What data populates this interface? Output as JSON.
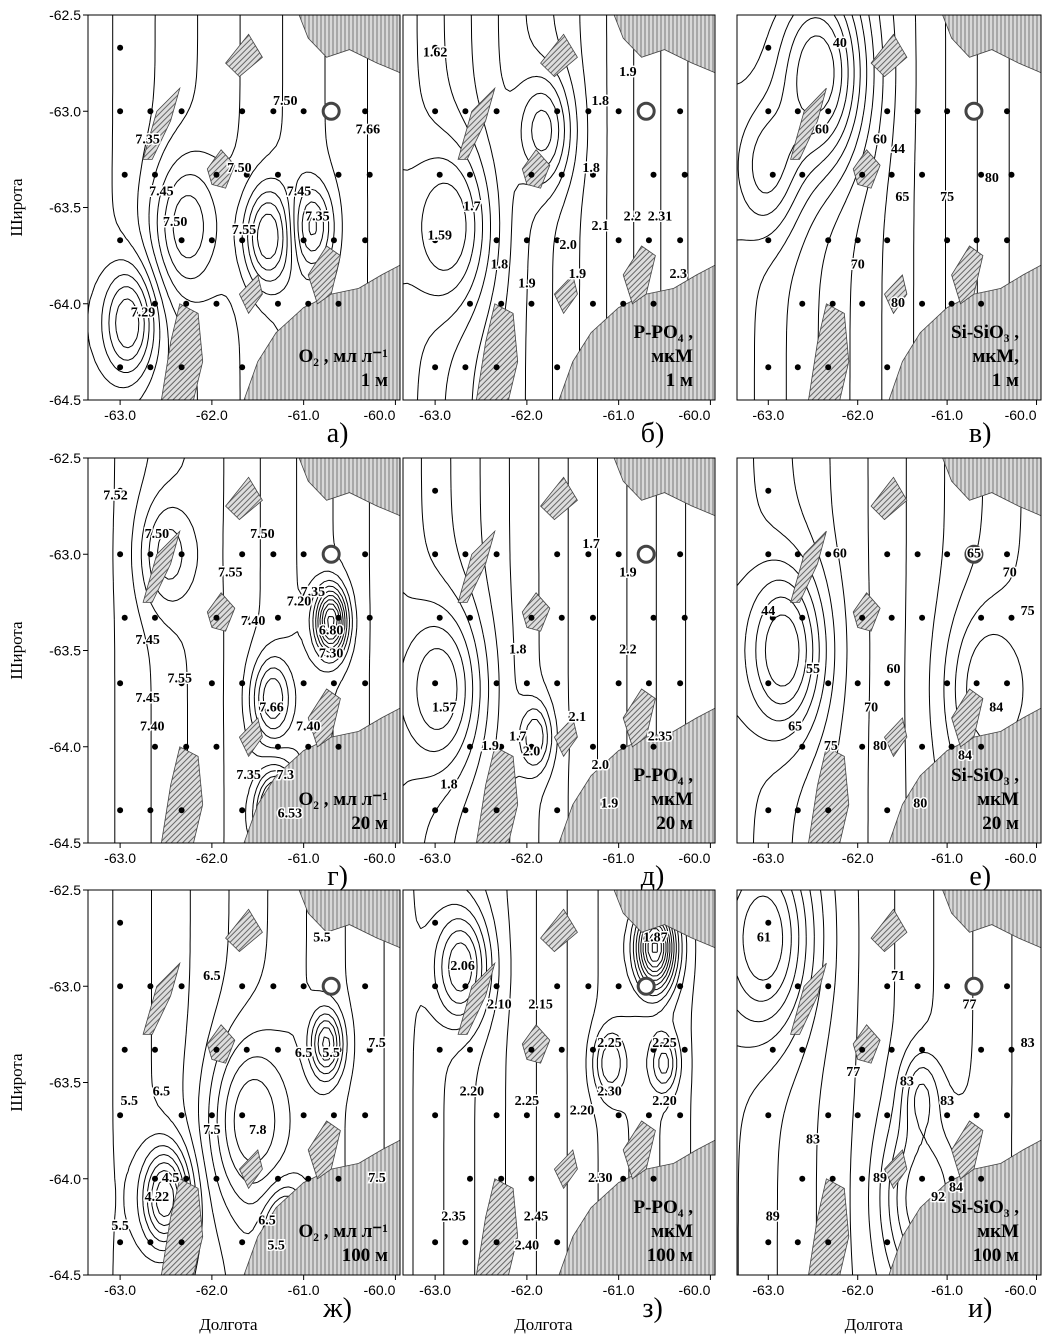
{
  "axes": {
    "xlim": [
      -63.35,
      -59.95
    ],
    "ylim": [
      -64.5,
      -62.5
    ],
    "xticks": [
      {
        "value": -63,
        "label": "-63.0"
      },
      {
        "value": -62,
        "label": "-62.0"
      },
      {
        "value": -61,
        "label": "-61.0"
      },
      {
        "value": -60,
        "label": "-60.0"
      }
    ],
    "yticks": [
      {
        "value": -62.5,
        "label": "-62.5"
      },
      {
        "value": -63,
        "label": "-63.0"
      },
      {
        "value": -63.5,
        "label": "-63.5"
      },
      {
        "value": -64,
        "label": "-64.0"
      },
      {
        "value": -64.5,
        "label": "-64.5"
      }
    ],
    "x_label": "Долгота",
    "y_label": "Широта"
  },
  "panels": [
    {
      "letter": "а)",
      "caption": [
        "O₂ , мл л⁻¹",
        "1 м"
      ],
      "labels": [
        {
          "text": "7.35",
          "lon": -62.7,
          "lat": -63.15
        },
        {
          "text": "7.45",
          "lon": -62.55,
          "lat": -63.42
        },
        {
          "text": "7.50",
          "lon": -62.4,
          "lat": -63.58
        },
        {
          "text": "7.50",
          "lon": -61.7,
          "lat": -63.3
        },
        {
          "text": "7.55",
          "lon": -61.65,
          "lat": -63.62
        },
        {
          "text": "7.50",
          "lon": -61.2,
          "lat": -62.95
        },
        {
          "text": "7.45",
          "lon": -61.05,
          "lat": -63.42
        },
        {
          "text": "7.35",
          "lon": -60.85,
          "lat": -63.55
        },
        {
          "text": "7.66",
          "lon": -60.3,
          "lat": -63.1
        },
        {
          "text": "7.29",
          "lon": -62.75,
          "lat": -64.05
        }
      ]
    },
    {
      "letter": "б)",
      "caption": [
        "P-PO₄ ,",
        "мкМ",
        "1 м"
      ],
      "labels": [
        {
          "text": "1.62",
          "lon": -63.0,
          "lat": -62.7
        },
        {
          "text": "1.9",
          "lon": -60.9,
          "lat": -62.8
        },
        {
          "text": "1.8",
          "lon": -61.2,
          "lat": -62.95
        },
        {
          "text": "1.8",
          "lon": -61.3,
          "lat": -63.3
        },
        {
          "text": "1.7",
          "lon": -62.6,
          "lat": -63.5
        },
        {
          "text": "1.59",
          "lon": -62.95,
          "lat": -63.65
        },
        {
          "text": "1.8",
          "lon": -62.3,
          "lat": -63.8
        },
        {
          "text": "1.9",
          "lon": -62.0,
          "lat": -63.9
        },
        {
          "text": "2.0",
          "lon": -61.55,
          "lat": -63.7
        },
        {
          "text": "1.9",
          "lon": -61.45,
          "lat": -63.85
        },
        {
          "text": "2.1",
          "lon": -61.2,
          "lat": -63.6
        },
        {
          "text": "2.2",
          "lon": -60.85,
          "lat": -63.55
        },
        {
          "text": "2.31",
          "lon": -60.55,
          "lat": -63.55
        },
        {
          "text": "2.3",
          "lon": -60.35,
          "lat": -63.85
        }
      ]
    },
    {
      "letter": "в)",
      "caption": [
        "Si-SiO₃ ,",
        "мкМ,",
        "1 м"
      ],
      "labels": [
        {
          "text": "40",
          "lon": -62.2,
          "lat": -62.65
        },
        {
          "text": "60",
          "lon": -62.4,
          "lat": -63.1
        },
        {
          "text": "60",
          "lon": -61.75,
          "lat": -63.15
        },
        {
          "text": "44",
          "lon": -61.55,
          "lat": -63.2
        },
        {
          "text": "65",
          "lon": -61.5,
          "lat": -63.45
        },
        {
          "text": "75",
          "lon": -61.0,
          "lat": -63.45
        },
        {
          "text": "80",
          "lon": -60.5,
          "lat": -63.35
        },
        {
          "text": "70",
          "lon": -62.0,
          "lat": -63.8
        },
        {
          "text": "80",
          "lon": -61.55,
          "lat": -64.0
        }
      ]
    },
    {
      "letter": "г)",
      "caption": [
        "O₂ , мл л⁻¹",
        "20 м"
      ],
      "labels": [
        {
          "text": "7.52",
          "lon": -63.05,
          "lat": -62.7
        },
        {
          "text": "7.50",
          "lon": -62.6,
          "lat": -62.9
        },
        {
          "text": "7.50",
          "lon": -61.45,
          "lat": -62.9
        },
        {
          "text": "7.55",
          "lon": -61.8,
          "lat": -63.1
        },
        {
          "text": "7.45",
          "lon": -62.7,
          "lat": -63.45
        },
        {
          "text": "7.40",
          "lon": -61.55,
          "lat": -63.35
        },
        {
          "text": "7.35",
          "lon": -60.9,
          "lat": -63.2
        },
        {
          "text": "7.20",
          "lon": -61.05,
          "lat": -63.25
        },
        {
          "text": "6.80",
          "lon": -60.7,
          "lat": -63.4
        },
        {
          "text": "7.30",
          "lon": -60.7,
          "lat": -63.52
        },
        {
          "text": "7.55",
          "lon": -62.35,
          "lat": -63.65
        },
        {
          "text": "7.66",
          "lon": -61.35,
          "lat": -63.8
        },
        {
          "text": "7.45",
          "lon": -62.7,
          "lat": -63.75
        },
        {
          "text": "7.40",
          "lon": -62.65,
          "lat": -63.9
        },
        {
          "text": "7.40",
          "lon": -60.95,
          "lat": -63.9
        },
        {
          "text": "7.35",
          "lon": -61.6,
          "lat": -64.15
        },
        {
          "text": "7.3",
          "lon": -61.2,
          "lat": -64.15
        },
        {
          "text": "6.53",
          "lon": -61.15,
          "lat": -64.35
        }
      ]
    },
    {
      "letter": "д)",
      "caption": [
        "P-PO₄ ,",
        "мкМ",
        "20 м"
      ],
      "labels": [
        {
          "text": "1.7",
          "lon": -61.3,
          "lat": -62.95
        },
        {
          "text": "1.9",
          "lon": -60.9,
          "lat": -63.1
        },
        {
          "text": "1.8",
          "lon": -62.1,
          "lat": -63.5
        },
        {
          "text": "1.57",
          "lon": -62.9,
          "lat": -63.8
        },
        {
          "text": "2.2",
          "lon": -60.9,
          "lat": -63.5
        },
        {
          "text": "1.9",
          "lon": -62.4,
          "lat": -64.0
        },
        {
          "text": "1.7",
          "lon": -62.1,
          "lat": -63.95
        },
        {
          "text": "2.0",
          "lon": -61.95,
          "lat": -64.03
        },
        {
          "text": "2.1",
          "lon": -61.45,
          "lat": -63.85
        },
        {
          "text": "2.35",
          "lon": -60.55,
          "lat": -63.95
        },
        {
          "text": "2.0",
          "lon": -61.2,
          "lat": -64.1
        },
        {
          "text": "1.9",
          "lon": -61.1,
          "lat": -64.3
        },
        {
          "text": "1.8",
          "lon": -62.85,
          "lat": -64.2
        }
      ]
    },
    {
      "letter": "е)",
      "caption": [
        "Si-SiO₃ ,",
        "мкМ",
        "20 м"
      ],
      "labels": [
        {
          "text": "65",
          "lon": -60.7,
          "lat": -63.0
        },
        {
          "text": "70",
          "lon": -60.3,
          "lat": -63.1
        },
        {
          "text": "75",
          "lon": -60.1,
          "lat": -63.3
        },
        {
          "text": "60",
          "lon": -62.2,
          "lat": -63.0
        },
        {
          "text": "44",
          "lon": -63.0,
          "lat": -63.3
        },
        {
          "text": "55",
          "lon": -62.5,
          "lat": -63.6
        },
        {
          "text": "60",
          "lon": -61.6,
          "lat": -63.6
        },
        {
          "text": "70",
          "lon": -61.85,
          "lat": -63.8
        },
        {
          "text": "65",
          "lon": -62.7,
          "lat": -63.9
        },
        {
          "text": "75",
          "lon": -62.3,
          "lat": -64.0
        },
        {
          "text": "80",
          "lon": -61.75,
          "lat": -64.0
        },
        {
          "text": "84",
          "lon": -60.45,
          "lat": -63.8
        },
        {
          "text": "84",
          "lon": -60.8,
          "lat": -64.05
        },
        {
          "text": "80",
          "lon": -61.3,
          "lat": -64.3
        }
      ]
    },
    {
      "letter": "ж)",
      "caption": [
        "O₂ , мл л⁻¹",
        "100 м"
      ],
      "labels": [
        {
          "text": "5.5",
          "lon": -60.8,
          "lat": -62.75
        },
        {
          "text": "6.5",
          "lon": -62.0,
          "lat": -62.95
        },
        {
          "text": "6.5",
          "lon": -62.55,
          "lat": -63.55
        },
        {
          "text": "5.5",
          "lon": -62.9,
          "lat": -63.6
        },
        {
          "text": "6.5",
          "lon": -61.0,
          "lat": -63.35
        },
        {
          "text": "5.5",
          "lon": -60.7,
          "lat": -63.35
        },
        {
          "text": "7.5",
          "lon": -60.2,
          "lat": -63.3
        },
        {
          "text": "7.5",
          "lon": -62.0,
          "lat": -63.75
        },
        {
          "text": "7.8",
          "lon": -61.5,
          "lat": -63.75
        },
        {
          "text": "7.5",
          "lon": -60.2,
          "lat": -64.0
        },
        {
          "text": "4.5",
          "lon": -62.45,
          "lat": -64.0
        },
        {
          "text": "4.22",
          "lon": -62.6,
          "lat": -64.1
        },
        {
          "text": "5.5",
          "lon": -63.0,
          "lat": -64.25
        },
        {
          "text": "6.5",
          "lon": -61.4,
          "lat": -64.22
        },
        {
          "text": "5.5",
          "lon": -61.3,
          "lat": -64.35
        }
      ]
    },
    {
      "letter": "з)",
      "caption": [
        "P-PO₄ ,",
        "мкМ",
        "100 м"
      ],
      "labels": [
        {
          "text": "1.87",
          "lon": -60.6,
          "lat": -62.75
        },
        {
          "text": "2.06",
          "lon": -62.7,
          "lat": -62.9
        },
        {
          "text": "2.10",
          "lon": -62.3,
          "lat": -63.1
        },
        {
          "text": "2.15",
          "lon": -61.85,
          "lat": -63.1
        },
        {
          "text": "2.25",
          "lon": -61.1,
          "lat": -63.3
        },
        {
          "text": "2.25",
          "lon": -60.5,
          "lat": -63.3
        },
        {
          "text": "2.20",
          "lon": -62.6,
          "lat": -63.55
        },
        {
          "text": "2.25",
          "lon": -62.0,
          "lat": -63.6
        },
        {
          "text": "2.30",
          "lon": -61.1,
          "lat": -63.55
        },
        {
          "text": "2.20",
          "lon": -61.4,
          "lat": -63.65
        },
        {
          "text": "2.20",
          "lon": -60.5,
          "lat": -63.6
        },
        {
          "text": "2.30",
          "lon": -61.2,
          "lat": -64.0
        },
        {
          "text": "2.35",
          "lon": -62.8,
          "lat": -64.2
        },
        {
          "text": "2.45",
          "lon": -61.9,
          "lat": -64.2
        },
        {
          "text": "2.40",
          "lon": -62.0,
          "lat": -64.35
        }
      ]
    },
    {
      "letter": "и)",
      "caption": [
        "Si-SiO₃ ,",
        "мкМ",
        "100 м"
      ],
      "labels": [
        {
          "text": "61",
          "lon": -63.05,
          "lat": -62.75
        },
        {
          "text": "71",
          "lon": -61.55,
          "lat": -62.95
        },
        {
          "text": "77",
          "lon": -60.75,
          "lat": -63.1
        },
        {
          "text": "83",
          "lon": -60.1,
          "lat": -63.3
        },
        {
          "text": "77",
          "lon": -62.05,
          "lat": -63.45
        },
        {
          "text": "83",
          "lon": -61.45,
          "lat": -63.5
        },
        {
          "text": "83",
          "lon": -61.0,
          "lat": -63.6
        },
        {
          "text": "83",
          "lon": -62.5,
          "lat": -63.8
        },
        {
          "text": "89",
          "lon": -61.75,
          "lat": -64.0
        },
        {
          "text": "92",
          "lon": -61.1,
          "lat": -64.1
        },
        {
          "text": "84",
          "lon": -60.9,
          "lat": -64.05
        },
        {
          "text": "89",
          "lon": -62.95,
          "lat": -64.2
        }
      ]
    }
  ]
}
